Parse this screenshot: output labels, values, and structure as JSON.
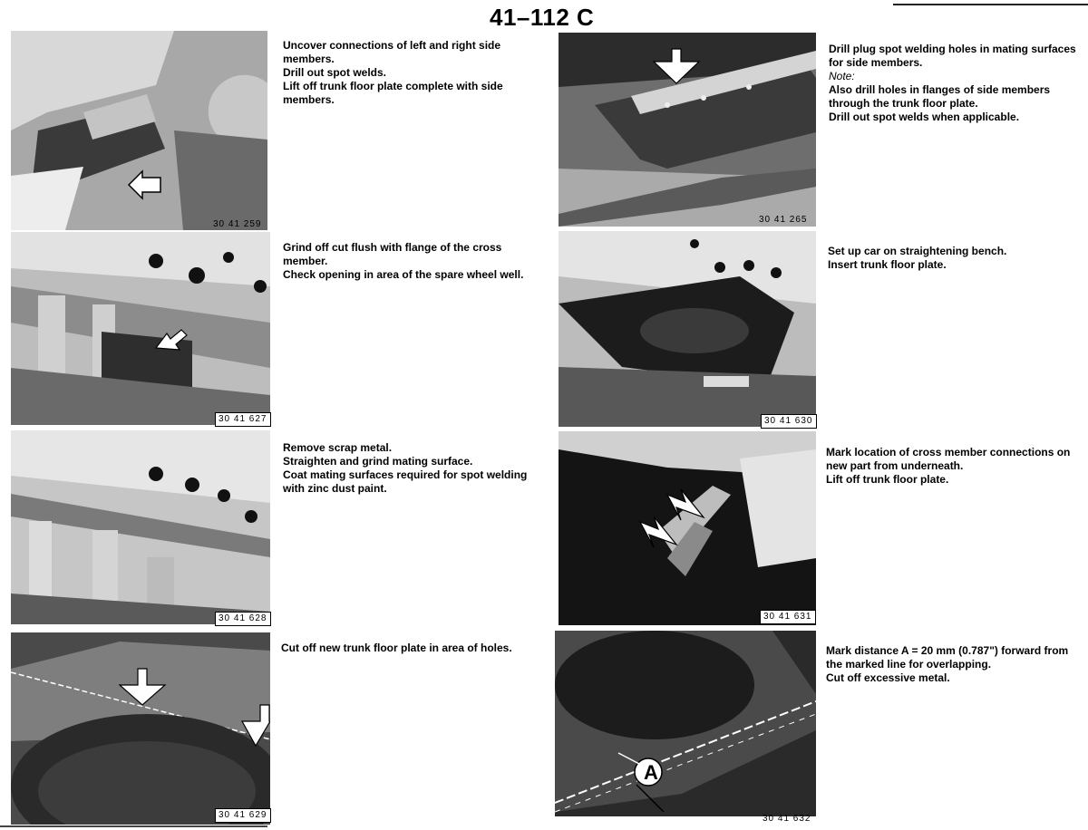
{
  "header": {
    "title": "41–112 C"
  },
  "left_column": [
    {
      "figure": "30 41 259",
      "lines": [
        "Uncover connections of left and right side members.",
        "Drill out spot welds.",
        "Lift off trunk floor plate complete with side members."
      ]
    },
    {
      "figure": "30 41 627",
      "lines": [
        "Grind off cut flush with flange of the cross member.",
        "Check opening in area of the spare wheel well."
      ]
    },
    {
      "figure": "30 41 628",
      "lines": [
        "Remove scrap metal.",
        "Straighten and grind mating surface.",
        "Coat mating surfaces required for spot welding with zinc dust paint."
      ]
    },
    {
      "figure": "30 41 629",
      "lines": [
        "Cut off new trunk floor plate in area of holes."
      ]
    }
  ],
  "right_column": [
    {
      "figure": "30 41 265",
      "lines": [
        "Drill plug spot welding holes in mating surfaces for side members.",
        "Note:",
        "Also drill holes in flanges of side members through the trunk floor plate.",
        "Drill out spot welds when applicable."
      ]
    },
    {
      "figure": "30 41 630",
      "lines": [
        "Set up car on straightening bench.",
        "Insert trunk floor plate."
      ]
    },
    {
      "figure": "30 41 631",
      "lines": [
        "Mark location of cross member connections on new part from underneath.",
        "Lift off trunk floor plate."
      ]
    },
    {
      "figure": "30 41 632",
      "callout": "A",
      "lines": [
        "Mark distance A = 20 mm (0.787\") forward from the marked line for overlapping.",
        "Cut off excessive metal."
      ]
    }
  ]
}
